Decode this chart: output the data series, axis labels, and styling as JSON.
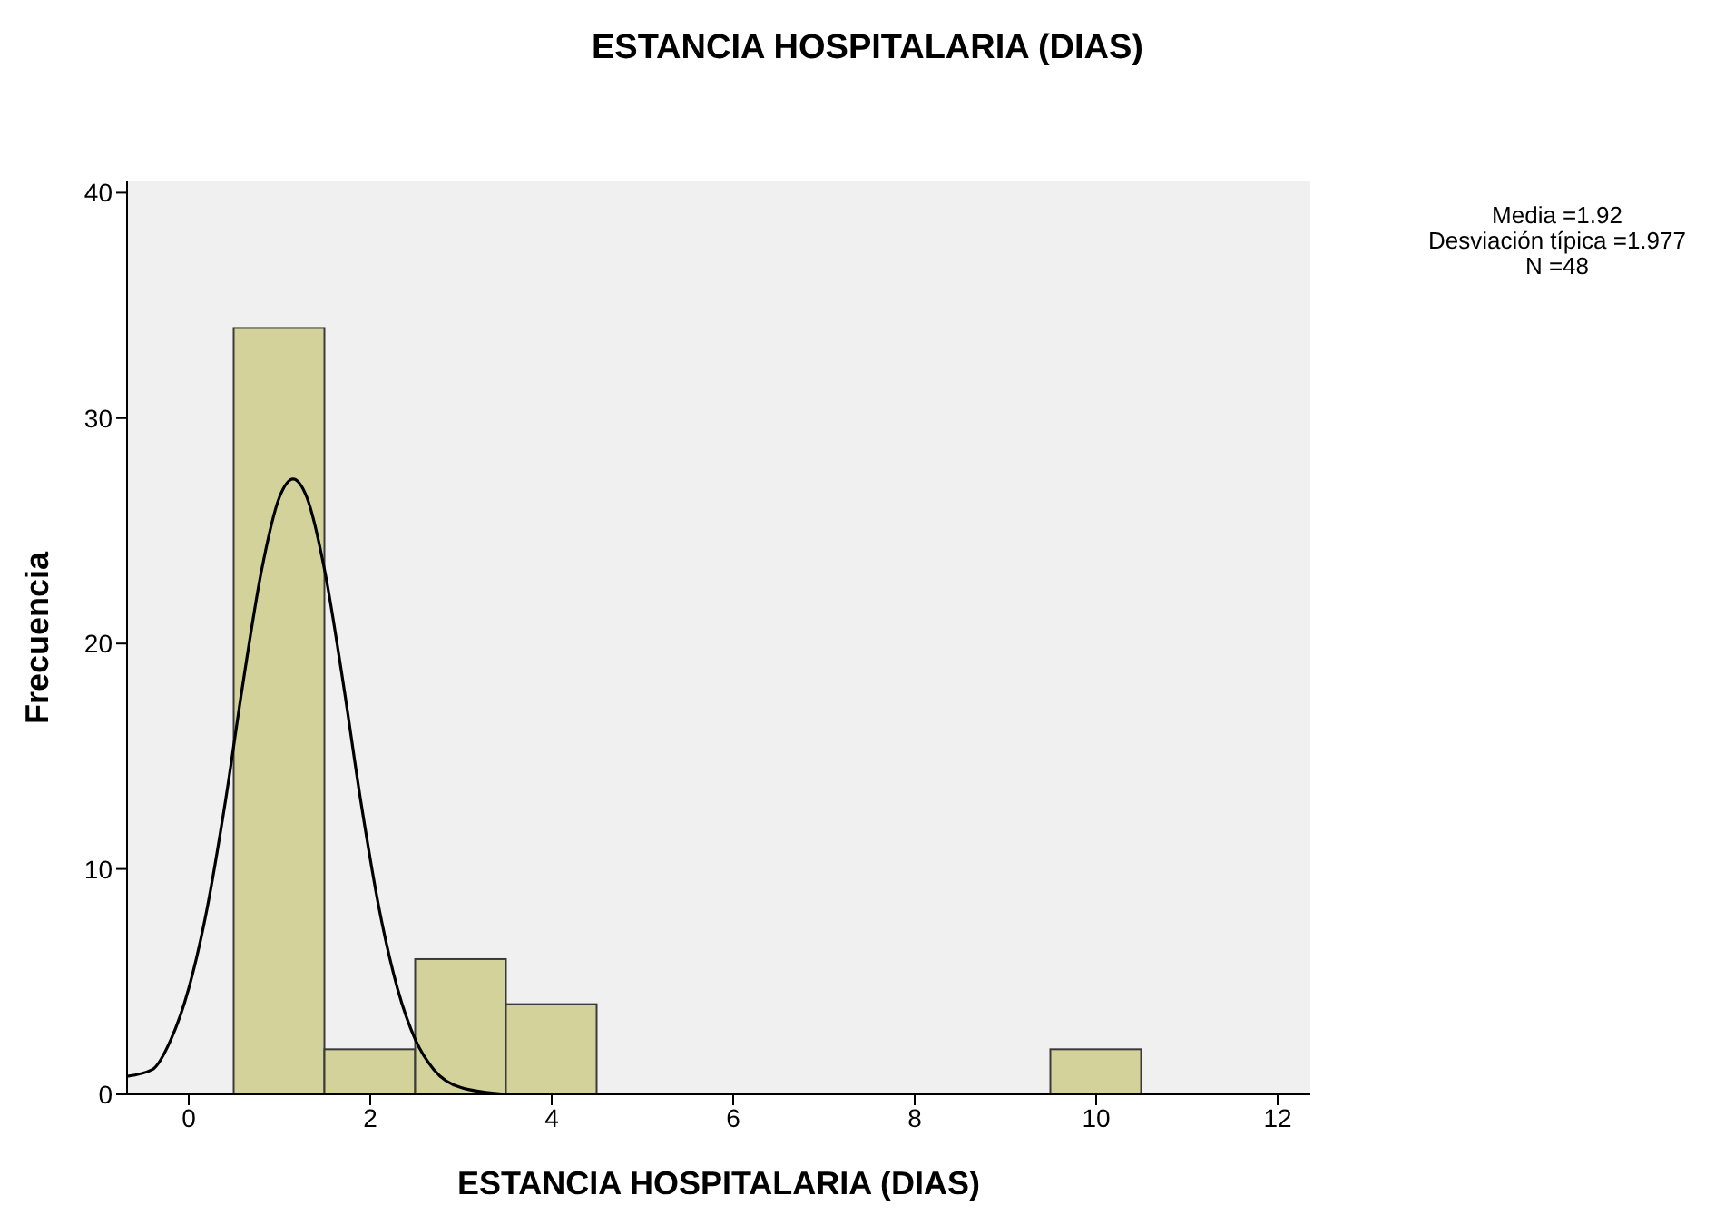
{
  "chart_data": {
    "type": "histogram",
    "title": "ESTANCIA HOSPITALARIA (DIAS)",
    "xlabel": "ESTANCIA HOSPITALARIA (DIAS)",
    "ylabel": "Frecuencia",
    "bins": [
      0.5,
      1.5,
      2.5,
      3.5,
      4.5,
      5.5,
      6.5,
      7.5,
      8.5,
      9.5,
      10.5
    ],
    "values": [
      34,
      2,
      6,
      4,
      0,
      0,
      0,
      0,
      0,
      2
    ],
    "color": "#d2d29a",
    "series": [
      {
        "type": "line",
        "color": "#000000",
        "x": [
          -0.68,
          -0.4,
          -0.2,
          0,
          0.2,
          0.4,
          0.6,
          0.8,
          1,
          1.15,
          1.3,
          1.5,
          1.7,
          1.9,
          2.1,
          2.3,
          2.5,
          2.7,
          3,
          3.5
        ],
        "values": [
          0.8,
          1.1,
          2.4,
          4.7,
          8.2,
          12.9,
          18.3,
          23.2,
          26.5,
          27.3,
          26.5,
          23.2,
          18.3,
          12.9,
          8.2,
          4.7,
          2.4,
          1.1,
          0.3,
          0
        ]
      }
    ],
    "xlim": [
      -0.68,
      12.36
    ],
    "xticks": [
      0,
      2,
      4,
      6,
      8,
      10,
      12
    ],
    "ylim": [
      0,
      40.5
    ],
    "yticks": [
      0,
      10,
      20,
      30,
      40
    ],
    "annotations": [
      "Media =1.92",
      "Desviación típica =1.977",
      "N =48"
    ]
  }
}
